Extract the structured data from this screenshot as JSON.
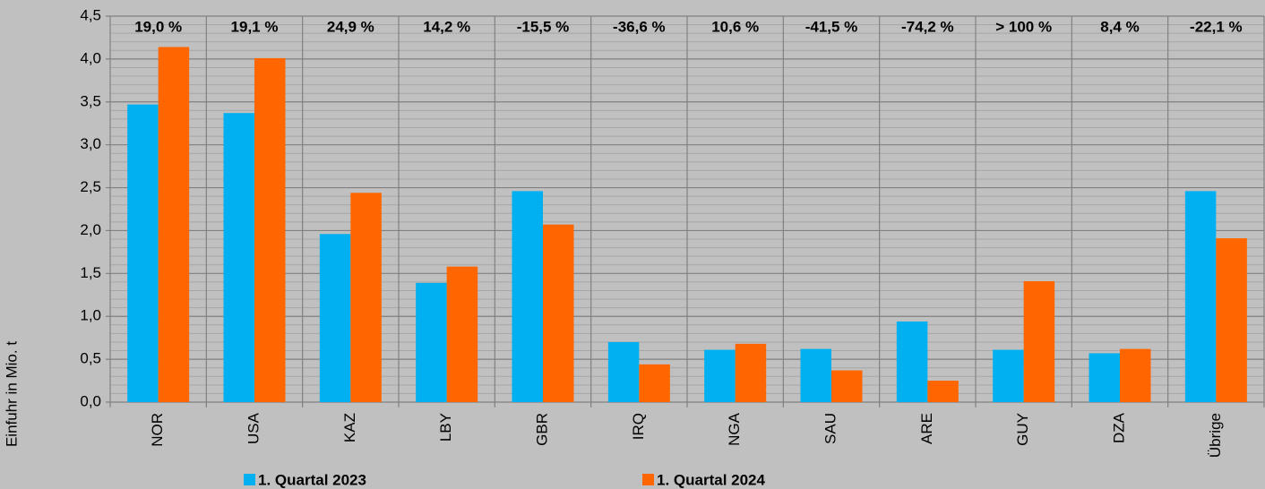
{
  "chart_data": {
    "type": "bar",
    "y_label": "Einfuhr in Mio. t",
    "categories": [
      "NOR",
      "USA",
      "KAZ",
      "LBY",
      "GBR",
      "IRQ",
      "NGA",
      "SAU",
      "ARE",
      "GUY",
      "DZA",
      "Übrige"
    ],
    "annotations": [
      "19,0 %",
      "19,1 %",
      "24,9 %",
      "14,2 %",
      "-15,5 %",
      "-36,6 %",
      "10,6 %",
      "-41,5 %",
      "-74,2 %",
      "> 100 %",
      "8,4 %",
      "-22,1 %"
    ],
    "series": [
      {
        "name": "1. Quartal 2023",
        "color": "#00b0f0",
        "values": [
          3.47,
          3.37,
          1.96,
          1.39,
          2.46,
          0.7,
          0.61,
          0.62,
          0.94,
          0.61,
          0.57,
          2.46
        ]
      },
      {
        "name": "1. Quartal 2024",
        "color": "#ff6600",
        "values": [
          4.14,
          4.01,
          2.44,
          1.58,
          2.07,
          0.44,
          0.68,
          0.37,
          0.25,
          1.41,
          0.62,
          1.91
        ]
      }
    ],
    "ylim": [
      0,
      4.5
    ],
    "yticks": [
      {
        "value": 0,
        "label": "0,0"
      },
      {
        "value": 0.5,
        "label": "0,5"
      },
      {
        "value": 1,
        "label": "1,0"
      },
      {
        "value": 1.5,
        "label": "1,5"
      },
      {
        "value": 2,
        "label": "2,0"
      },
      {
        "value": 2.5,
        "label": "2,5"
      },
      {
        "value": 3,
        "label": "3,0"
      },
      {
        "value": 3.5,
        "label": "3,5"
      },
      {
        "value": 4,
        "label": "4,0"
      },
      {
        "value": 4.5,
        "label": "4,5"
      }
    ],
    "grid": true
  }
}
